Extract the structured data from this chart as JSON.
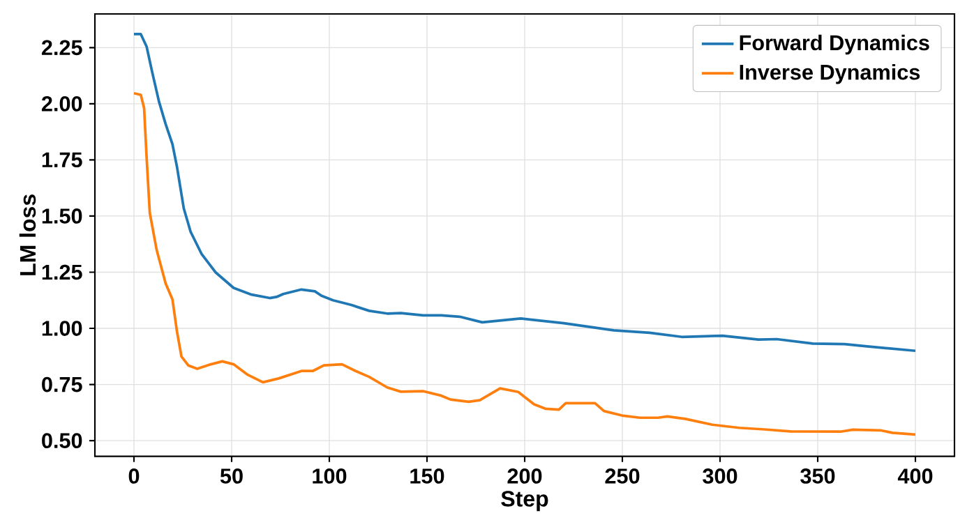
{
  "chart_data": {
    "type": "line",
    "xlabel": "Step",
    "ylabel": "LM loss",
    "xlim": [
      -20,
      420
    ],
    "ylim": [
      0.43,
      2.4
    ],
    "xticks": [
      0,
      50,
      100,
      150,
      200,
      250,
      300,
      350,
      400
    ],
    "yticks": [
      {
        "value": 0.5,
        "label": "0.50"
      },
      {
        "value": 0.75,
        "label": "0.75"
      },
      {
        "value": 1.0,
        "label": "1.00"
      },
      {
        "value": 1.25,
        "label": "1.25"
      },
      {
        "value": 1.5,
        "label": "1.50"
      },
      {
        "value": 1.75,
        "label": "1.75"
      },
      {
        "value": 2.0,
        "label": "2.00"
      },
      {
        "value": 2.25,
        "label": "2.25"
      }
    ],
    "grid": true,
    "legend": "top right",
    "line_style": "solid",
    "series": [
      {
        "name": "Forward Dynamics",
        "color": "#1f77b4",
        "x": [
          0,
          3.5,
          6.5,
          9.3,
          12.8,
          16.2,
          19.7,
          22,
          25.5,
          29,
          34.7,
          41.7,
          51,
          60.2,
          69.5,
          73,
          76.4,
          85.7,
          92.6,
          96,
          101.9,
          111,
          120.4,
          129.6,
          136.6,
          148,
          157.4,
          166.7,
          178.3,
          198,
          220,
          245.6,
          264,
          280.4,
          301.2,
          319.7,
          329,
          347.5,
          363.7,
          375.3,
          400
        ],
        "values": [
          2.31,
          2.31,
          2.254,
          2.142,
          2.01,
          1.91,
          1.82,
          1.72,
          1.534,
          1.43,
          1.33,
          1.25,
          1.18,
          1.15,
          1.135,
          1.14,
          1.153,
          1.173,
          1.165,
          1.145,
          1.125,
          1.105,
          1.078,
          1.066,
          1.068,
          1.058,
          1.058,
          1.052,
          1.027,
          1.044,
          1.023,
          0.991,
          0.98,
          0.962,
          0.967,
          0.95,
          0.952,
          0.932,
          0.93,
          0.92,
          0.9
        ]
      },
      {
        "name": "Inverse Dynamics",
        "color": "#ff7f0e",
        "x": [
          0,
          3.5,
          5.2,
          6.5,
          8.1,
          11.6,
          16.2,
          19.7,
          22,
          24.3,
          27.8,
          32.4,
          39.4,
          45.2,
          51,
          57.9,
          66,
          74.1,
          85.7,
          91.5,
          97.2,
          106.5,
          113.5,
          120.4,
          129.6,
          136.6,
          148.2,
          157.4,
          162,
          171.3,
          177,
          181.6,
          187.4,
          196.7,
          204.8,
          210.6,
          217.5,
          221,
          236,
          240.6,
          249.8,
          259,
          268.3,
          273,
          282.2,
          296,
          309.9,
          322.8,
          336,
          361.7,
          368,
          382,
          388.3,
          400
        ],
        "values": [
          2.047,
          2.04,
          1.98,
          1.757,
          1.514,
          1.35,
          1.2,
          1.129,
          0.987,
          0.875,
          0.835,
          0.82,
          0.84,
          0.853,
          0.84,
          0.795,
          0.76,
          0.777,
          0.81,
          0.81,
          0.835,
          0.84,
          0.81,
          0.784,
          0.737,
          0.718,
          0.72,
          0.7,
          0.683,
          0.673,
          0.68,
          0.703,
          0.733,
          0.717,
          0.662,
          0.642,
          0.638,
          0.667,
          0.667,
          0.632,
          0.612,
          0.602,
          0.602,
          0.608,
          0.597,
          0.571,
          0.557,
          0.55,
          0.541,
          0.54,
          0.549,
          0.546,
          0.535,
          0.527
        ]
      }
    ]
  }
}
